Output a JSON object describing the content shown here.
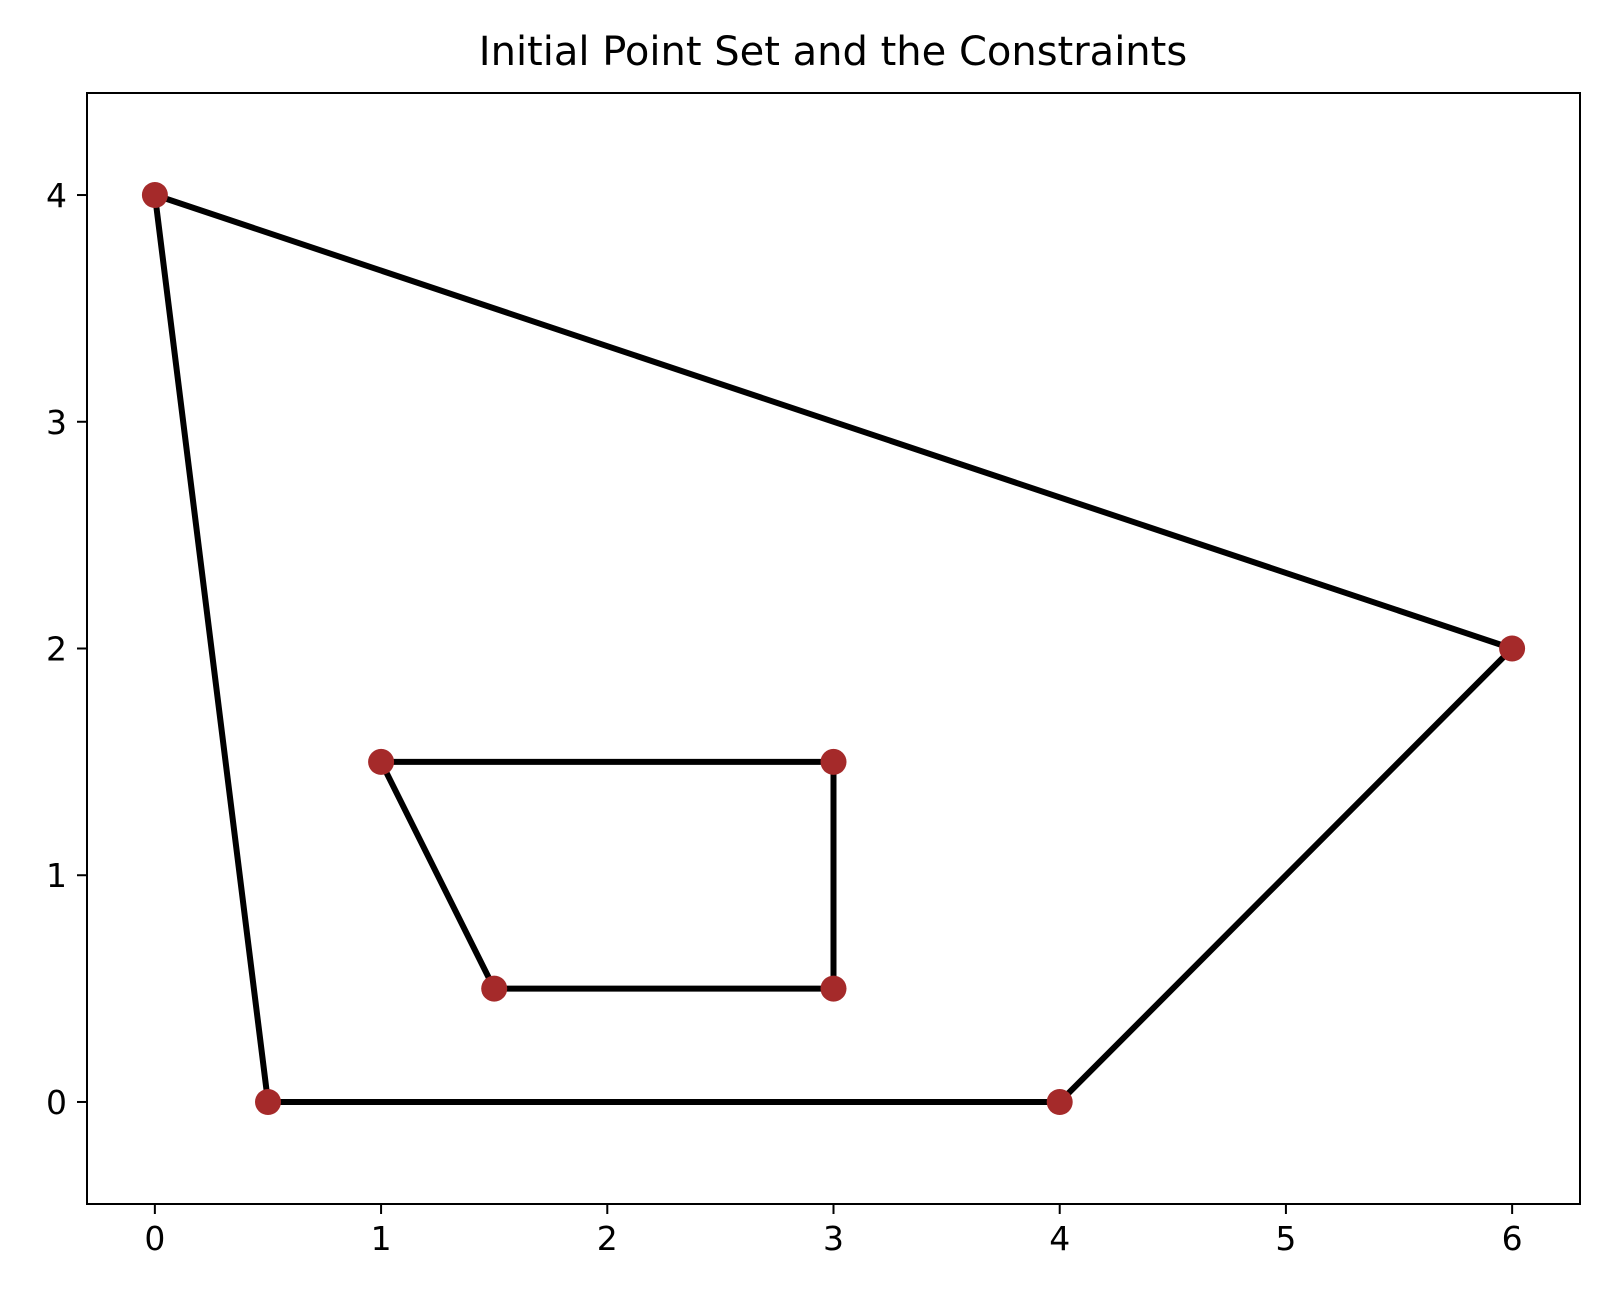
{
  "chart_data": {
    "type": "line",
    "title": "Initial Point Set and the Constraints",
    "xlabel": "",
    "ylabel": "",
    "xlim": [
      -0.3,
      6.3
    ],
    "ylim": [
      -0.45,
      4.45
    ],
    "xticks": [
      0,
      1,
      2,
      3,
      4,
      5,
      6
    ],
    "yticks": [
      0,
      1,
      2,
      3,
      4
    ],
    "grid": false,
    "points": [
      {
        "x": 0,
        "y": 4
      },
      {
        "x": 6,
        "y": 2
      },
      {
        "x": 4,
        "y": 0
      },
      {
        "x": 0.5,
        "y": 0
      },
      {
        "x": 1,
        "y": 1.5
      },
      {
        "x": 3,
        "y": 1.5
      },
      {
        "x": 3,
        "y": 0.5
      },
      {
        "x": 1.5,
        "y": 0.5
      }
    ],
    "polygons": [
      [
        [
          0,
          4
        ],
        [
          6,
          2
        ],
        [
          4,
          0
        ],
        [
          0.5,
          0
        ],
        [
          0,
          4
        ]
      ],
      [
        [
          1,
          1.5
        ],
        [
          3,
          1.5
        ],
        [
          3,
          0.5
        ],
        [
          1.5,
          0.5
        ],
        [
          1,
          1.5
        ]
      ]
    ],
    "colors": {
      "line": "#000000",
      "point": "#a52a2a"
    }
  }
}
